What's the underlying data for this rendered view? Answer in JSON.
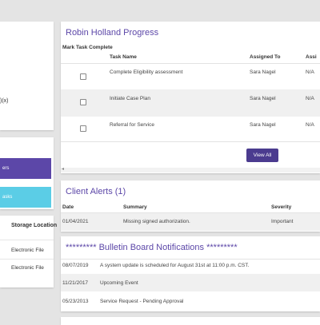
{
  "left": {
    "snippet": ")(x)",
    "pill_purple": "ers",
    "pill_cyan": "asks",
    "storage_header": "Storage Location",
    "storage_rows": [
      "Electronic File",
      "Electronic File"
    ]
  },
  "progress": {
    "title": "Robin Holland Progress",
    "headers": [
      "Mark Task Complete",
      "Task Name",
      "Assigned To",
      "Assi"
    ],
    "rows": [
      {
        "task": "Complete Eligibility assessment",
        "assigned": "Sara Nagel",
        "extra": "N/A"
      },
      {
        "task": "Initiate Case Plan",
        "assigned": "Sara Nagel",
        "extra": "N/A"
      },
      {
        "task": "Referral for Service",
        "assigned": "Sara Nagel",
        "extra": "N/A"
      }
    ],
    "view_all": "View All"
  },
  "alerts": {
    "title": "Client Alerts (1)",
    "headers": [
      "Date",
      "Summary",
      "Severity"
    ],
    "rows": [
      {
        "date": "01/04/2021",
        "summary": "Missing signed authorization.",
        "severity": "Important"
      }
    ]
  },
  "bulletin": {
    "title": "********* Bulletin Board Notifications *********",
    "rows": [
      {
        "date": "08/07/2019",
        "text": "A system update is scheduled for August 31st at 11:00 p.m. CST."
      },
      {
        "date": "11/21/2017",
        "text": "Upcoming Event"
      },
      {
        "date": "05/23/2013",
        "text": "Service Request - Pending Approval"
      }
    ]
  }
}
